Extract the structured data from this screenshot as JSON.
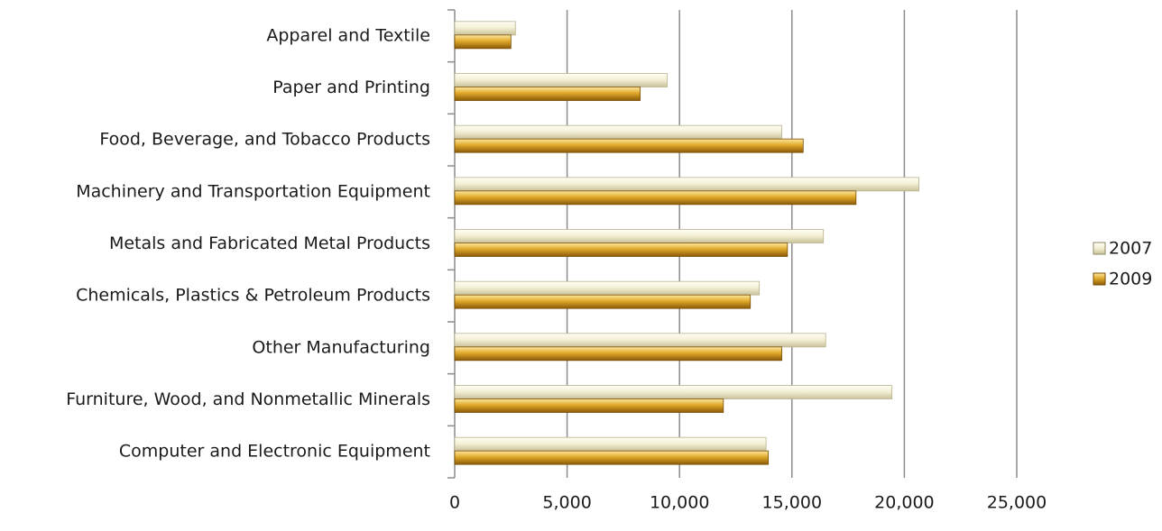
{
  "chart_data": {
    "type": "bar",
    "orientation": "horizontal",
    "categories": [
      "Apparel and Textile",
      "Paper and Printing",
      "Food, Beverage, and Tobacco Products",
      "Machinery and Transportation Equipment",
      "Metals and Fabricated Metal Products",
      "Chemicals, Plastics & Petroleum Products",
      "Other Manufacturing",
      "Furniture, Wood, and Nonmetallic Minerals",
      "Computer and Electronic Equipment"
    ],
    "series": [
      {
        "name": "2007",
        "color": "#f3efd2",
        "values": [
          2700,
          9450,
          14550,
          20650,
          16400,
          13550,
          16500,
          19450,
          13850
        ]
      },
      {
        "name": "2009",
        "color": "#d9a21d",
        "values": [
          2500,
          8250,
          15500,
          17850,
          14800,
          13150,
          14550,
          11950,
          13950
        ]
      }
    ],
    "x_ticks": [
      "0",
      "5,000",
      "10,000",
      "15,000",
      "20,000",
      "25,000"
    ],
    "xlim": [
      0,
      25000
    ],
    "grid": true,
    "legend_position": "right",
    "title": "",
    "xlabel": "",
    "ylabel": ""
  }
}
